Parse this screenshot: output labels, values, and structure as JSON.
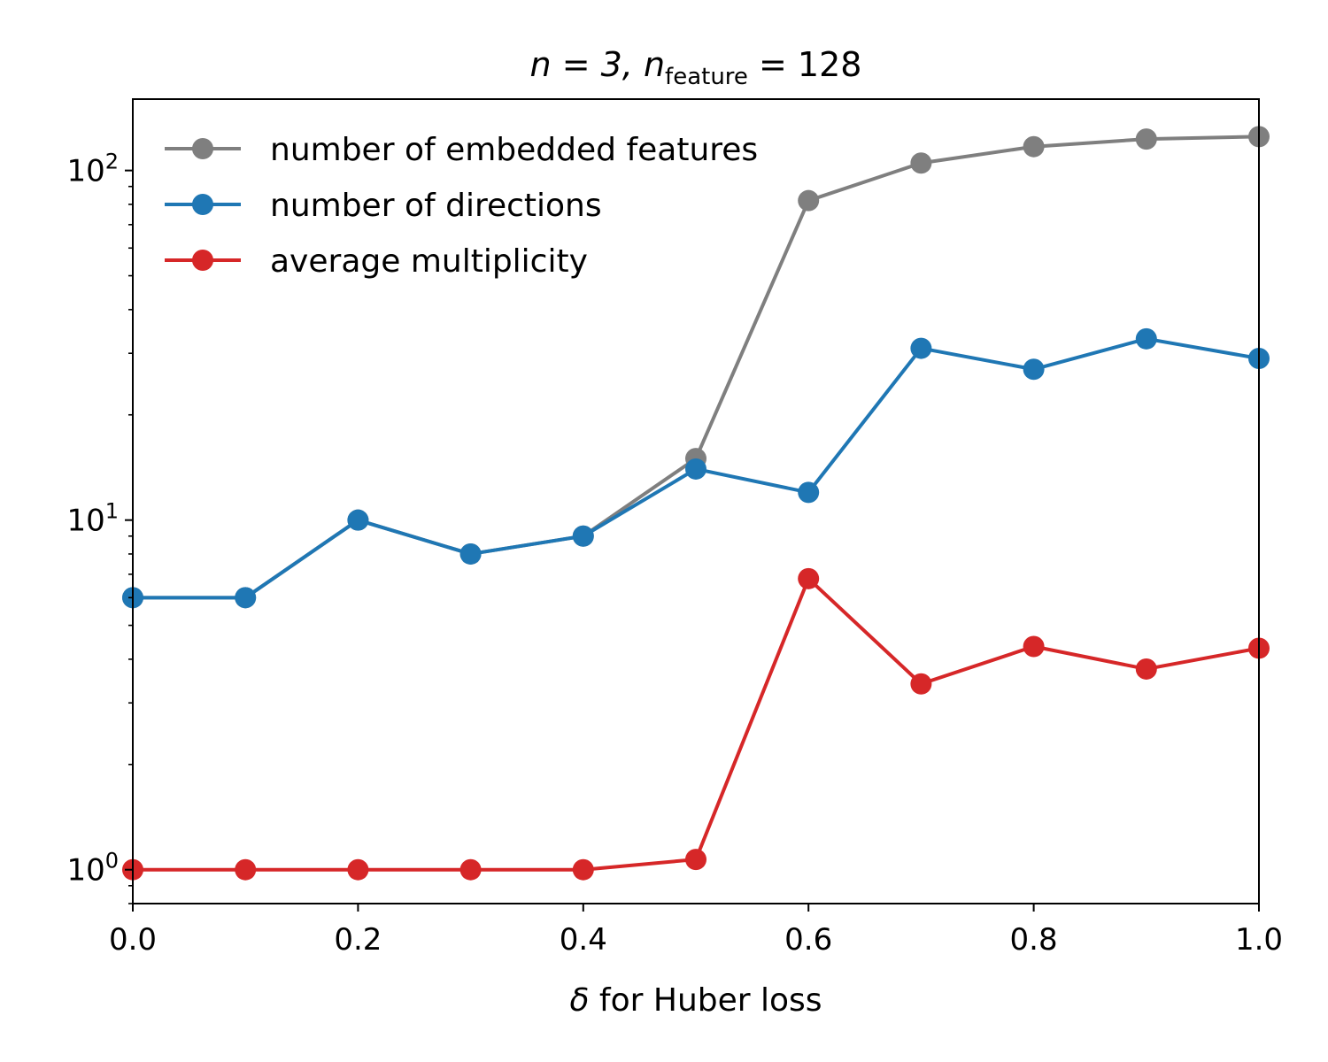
{
  "chart_data": {
    "type": "line",
    "title": {
      "base": "n = 3, n",
      "subscript": "feature",
      "tail": " = 128"
    },
    "xlabel": {
      "symbol": "δ",
      "text": " for Huber loss"
    },
    "ylabel": "",
    "xlim": [
      0,
      1
    ],
    "ylim": [
      0.8,
      160
    ],
    "yscale": "log",
    "x": [
      0.0,
      0.1,
      0.2,
      0.3,
      0.4,
      0.5,
      0.6,
      0.7,
      0.8,
      0.9,
      1.0
    ],
    "xticks": [
      0.0,
      0.2,
      0.4,
      0.6,
      0.8,
      1.0
    ],
    "xtick_labels": [
      "0.0",
      "0.2",
      "0.4",
      "0.6",
      "0.8",
      "1.0"
    ],
    "yticks": [
      1,
      10,
      100
    ],
    "ytick_labels": [
      {
        "base": "10",
        "exp": "0"
      },
      {
        "base": "10",
        "exp": "1"
      },
      {
        "base": "10",
        "exp": "2"
      }
    ],
    "grid": false,
    "legend_position": "top-left",
    "series": [
      {
        "name": "number of embedded features",
        "color": "#7f7f7f",
        "values": [
          6,
          6,
          10,
          8,
          9,
          15,
          82,
          105,
          117,
          123,
          125
        ]
      },
      {
        "name": "number of directions",
        "color": "#1f77b4",
        "values": [
          6,
          6,
          10,
          8,
          9,
          14,
          12,
          31,
          27,
          33,
          29
        ]
      },
      {
        "name": "average multiplicity",
        "color": "#d62728",
        "values": [
          1,
          1,
          1,
          1,
          1,
          1.07,
          6.8,
          3.4,
          4.35,
          3.75,
          4.3
        ]
      }
    ]
  }
}
